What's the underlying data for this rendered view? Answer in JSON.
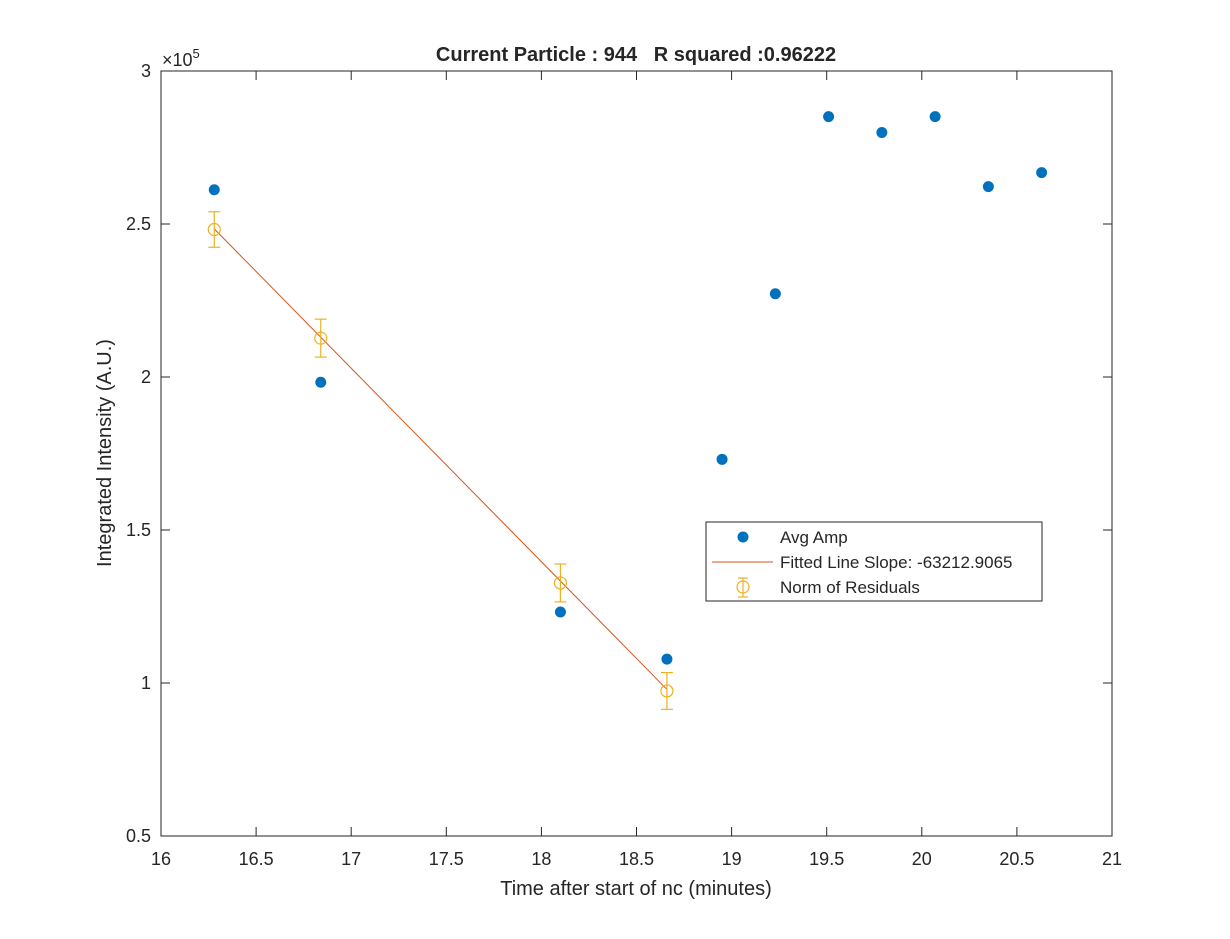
{
  "chart_data": {
    "type": "scatter",
    "title": "Current Particle : 944   R squared :0.96222",
    "xlabel": "Time after start of nc (minutes)",
    "ylabel": "Integrated Intensity (A.U.)",
    "y_multiplier_label": "×10",
    "y_multiplier_exponent": "5",
    "xlim": [
      16,
      21
    ],
    "ylim": [
      0.5,
      3
    ],
    "y_scale_factor": 100000,
    "x_ticks": [
      "16",
      "16.5",
      "17",
      "17.5",
      "18",
      "18.5",
      "19",
      "19.5",
      "20",
      "20.5",
      "21"
    ],
    "y_ticks": [
      "0.5",
      "1",
      "1.5",
      "2",
      "2.5",
      "3"
    ],
    "grid": false,
    "legend_position": "center-right",
    "series": [
      {
        "name": "Avg Amp",
        "kind": "marker",
        "color": "#0072BD",
        "x": [
          16.28,
          16.84,
          18.1,
          18.66,
          18.95,
          19.23,
          19.51,
          19.79,
          20.07,
          20.35,
          20.63
        ],
        "y": [
          2.612,
          1.983,
          1.232,
          1.078,
          1.731,
          2.272,
          2.851,
          2.799,
          2.851,
          2.622,
          2.668
        ]
      },
      {
        "name": "Fitted Line Slope: -63212.9065",
        "kind": "line",
        "color": "#D95319",
        "x": [
          16.28,
          18.66
        ],
        "y": [
          2.484,
          0.979
        ]
      },
      {
        "name": "Norm of Residuals",
        "kind": "errorbar",
        "color": "#EDB120",
        "x": [
          16.28,
          16.84,
          18.1,
          18.66
        ],
        "y": [
          2.482,
          2.127,
          1.327,
          0.974
        ],
        "err": [
          0.058,
          0.062,
          0.062,
          0.06
        ]
      }
    ]
  }
}
